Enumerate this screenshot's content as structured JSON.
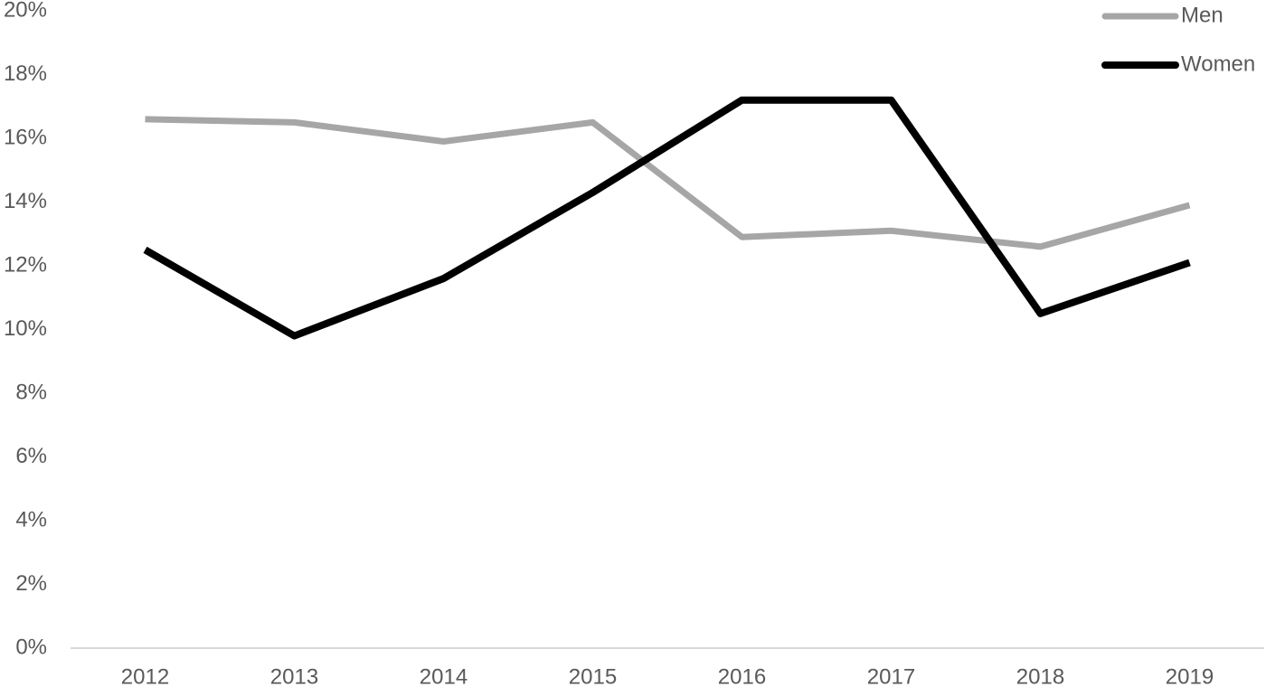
{
  "chart_data": {
    "type": "line",
    "categories": [
      "2012",
      "2013",
      "2014",
      "2015",
      "2016",
      "2017",
      "2018",
      "2019"
    ],
    "series": [
      {
        "name": "Men",
        "color": "#a6a6a6",
        "values": [
          16.6,
          16.5,
          15.9,
          16.5,
          12.9,
          13.1,
          12.6,
          13.9
        ]
      },
      {
        "name": "Women",
        "color": "#000000",
        "values": [
          12.5,
          9.8,
          11.6,
          14.3,
          17.2,
          17.2,
          10.5,
          12.1
        ]
      }
    ],
    "ylim": [
      0,
      20
    ],
    "yticks": [
      {
        "value": 0,
        "label": "0%"
      },
      {
        "value": 2,
        "label": "2%"
      },
      {
        "value": 4,
        "label": "4%"
      },
      {
        "value": 6,
        "label": "6%"
      },
      {
        "value": 8,
        "label": "8%"
      },
      {
        "value": 10,
        "label": "10%"
      },
      {
        "value": 12,
        "label": "12%"
      },
      {
        "value": 14,
        "label": "14%"
      },
      {
        "value": 16,
        "label": "16%"
      },
      {
        "value": 18,
        "label": "18%"
      },
      {
        "value": 20,
        "label": "20%"
      }
    ],
    "grid": false,
    "legend": "top-right"
  }
}
